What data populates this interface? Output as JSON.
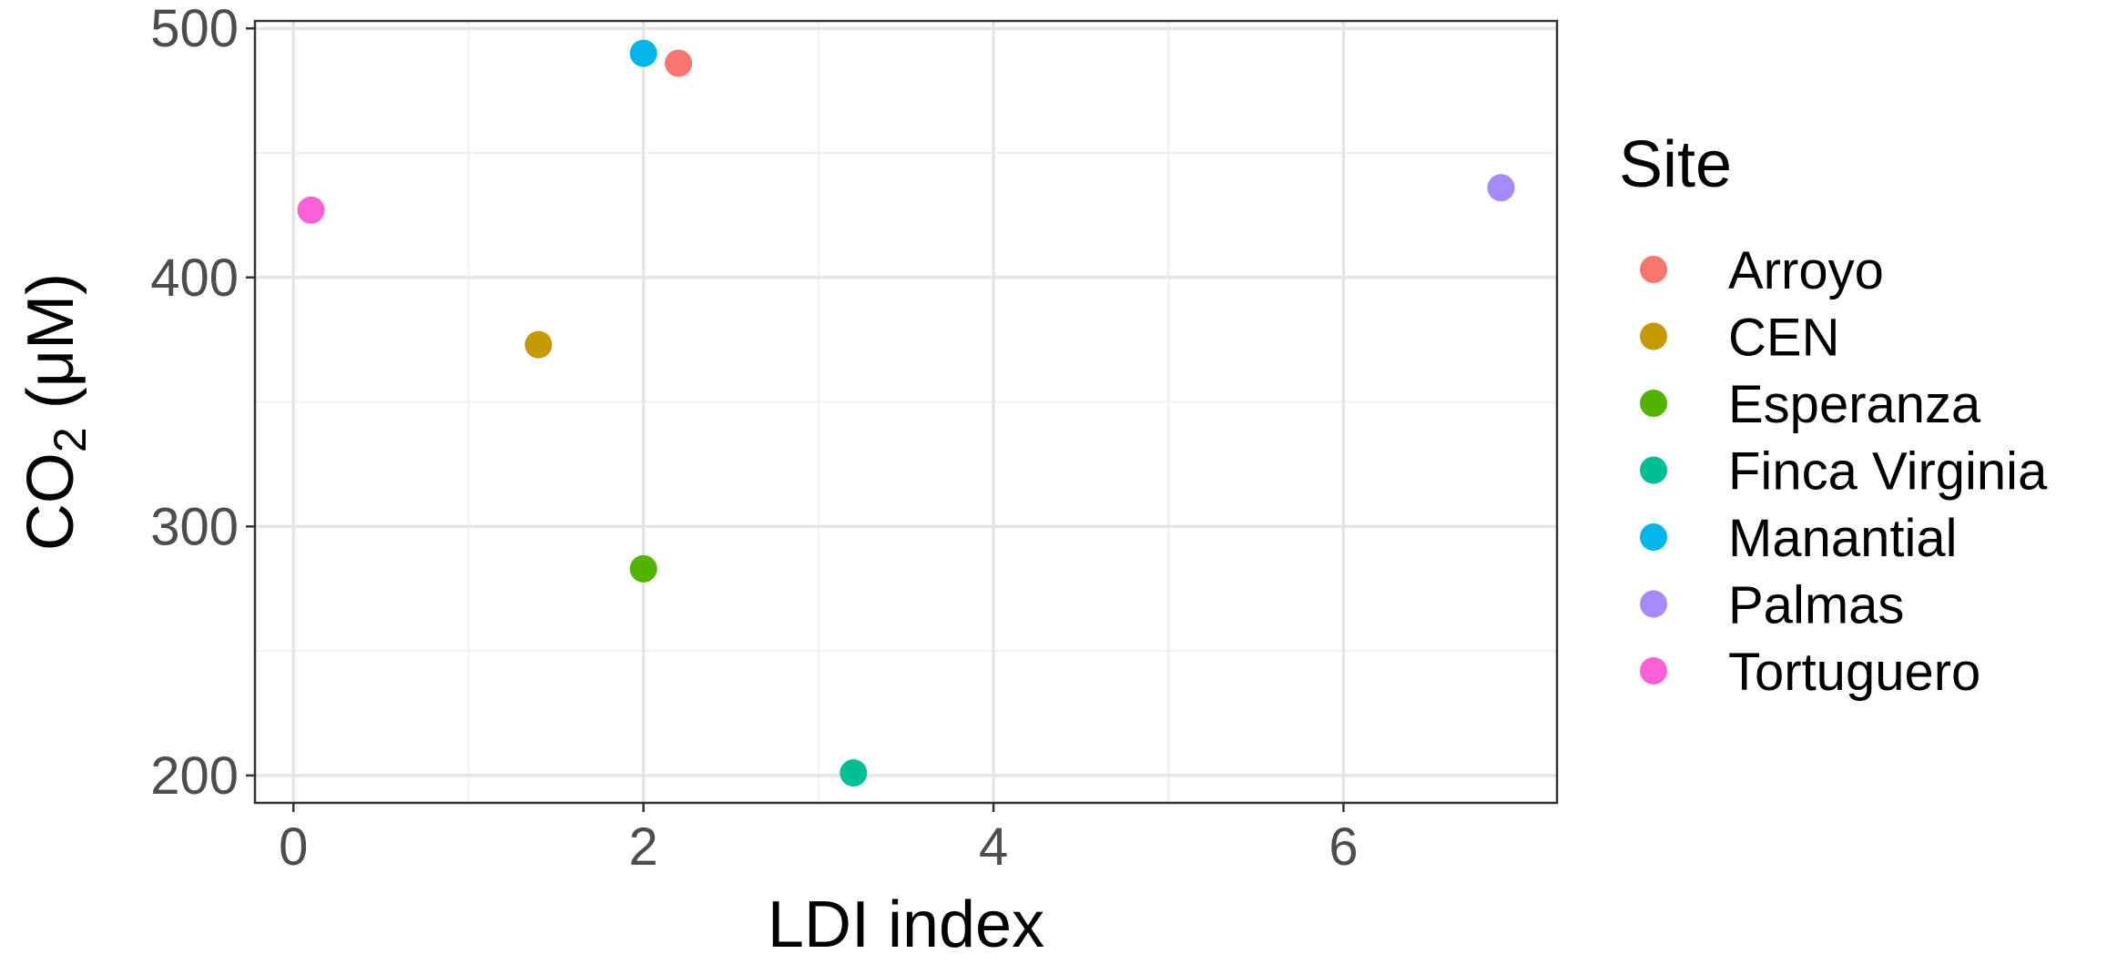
{
  "chart_data": {
    "type": "scatter",
    "xlabel": "LDI index",
    "ylabel": {
      "prefix": "CO",
      "subscript": "2",
      "suffix": " (μM)"
    },
    "xlim": [
      -0.22,
      7.22
    ],
    "ylim": [
      189,
      503
    ],
    "xticks": [
      0,
      2,
      4,
      6
    ],
    "xtick_labels": [
      "0",
      "2",
      "4",
      "6"
    ],
    "yticks": [
      200,
      300,
      400,
      500
    ],
    "ytick_labels": [
      "200",
      "300",
      "400",
      "500"
    ],
    "grid": true,
    "legend": {
      "title": "Site",
      "placement": "right"
    },
    "series": [
      {
        "name": "Arroyo",
        "color": "#F8766D",
        "x": [
          2.2
        ],
        "y": [
          486
        ]
      },
      {
        "name": "CEN",
        "color": "#C49A00",
        "x": [
          1.4
        ],
        "y": [
          373
        ]
      },
      {
        "name": "Esperanza",
        "color": "#53B400",
        "x": [
          2.0
        ],
        "y": [
          283
        ]
      },
      {
        "name": "Finca Virginia",
        "color": "#00C094",
        "x": [
          3.2
        ],
        "y": [
          201
        ]
      },
      {
        "name": "Manantial",
        "color": "#00B6EB",
        "x": [
          2.0
        ],
        "y": [
          490
        ]
      },
      {
        "name": "Palmas",
        "color": "#A58AFF",
        "x": [
          6.9
        ],
        "y": [
          436
        ]
      },
      {
        "name": "Tortuguero",
        "color": "#FB61D7",
        "x": [
          0.1
        ],
        "y": [
          427
        ]
      }
    ]
  }
}
